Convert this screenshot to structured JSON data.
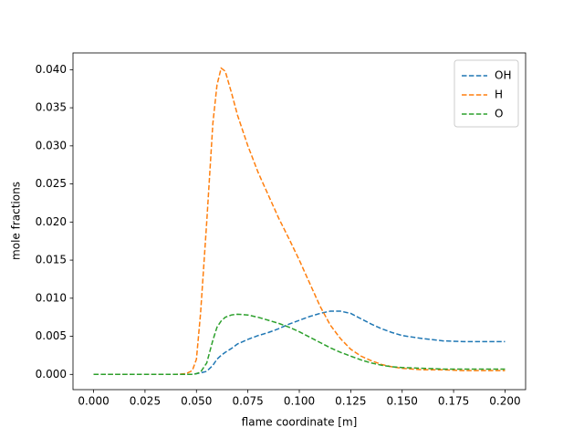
{
  "chart_data": {
    "type": "line",
    "xlabel": "flame coordinate [m]",
    "ylabel": "mole fractions",
    "x": [
      0,
      0.02,
      0.04,
      0.045,
      0.048,
      0.05,
      0.052,
      0.055,
      0.058,
      0.06,
      0.062,
      0.064,
      0.067,
      0.07,
      0.075,
      0.08,
      0.085,
      0.09,
      0.095,
      0.1,
      0.105,
      0.11,
      0.115,
      0.12,
      0.125,
      0.13,
      0.135,
      0.14,
      0.145,
      0.15,
      0.16,
      0.17,
      0.18,
      0.19,
      0.2
    ],
    "series": [
      {
        "name": "OH",
        "color": "#1f77b4",
        "values": [
          0,
          0,
          0,
          0,
          0,
          0.0001,
          0.0002,
          0.0004,
          0.0012,
          0.002,
          0.0025,
          0.0029,
          0.0034,
          0.004,
          0.0046,
          0.0051,
          0.0055,
          0.006,
          0.0066,
          0.0071,
          0.0076,
          0.008,
          0.0083,
          0.0083,
          0.008,
          0.0073,
          0.0066,
          0.006,
          0.0055,
          0.0051,
          0.0047,
          0.0044,
          0.0043,
          0.0043,
          0.0043
        ]
      },
      {
        "name": "H",
        "color": "#ff7f0e",
        "values": [
          0,
          0,
          0,
          0.0001,
          0.0005,
          0.002,
          0.008,
          0.02,
          0.033,
          0.038,
          0.0402,
          0.0398,
          0.037,
          0.034,
          0.03,
          0.0265,
          0.0235,
          0.0205,
          0.0178,
          0.015,
          0.012,
          0.009,
          0.0065,
          0.0047,
          0.0033,
          0.0024,
          0.0018,
          0.0013,
          0.001,
          0.0008,
          0.0006,
          0.0006,
          0.0005,
          0.0005,
          0.0005
        ]
      },
      {
        "name": "O",
        "color": "#2ca02c",
        "values": [
          0,
          0,
          0,
          0,
          0,
          0.0001,
          0.0003,
          0.0015,
          0.0045,
          0.0062,
          0.007,
          0.0075,
          0.0078,
          0.0079,
          0.0078,
          0.0075,
          0.0071,
          0.0067,
          0.0062,
          0.0056,
          0.0049,
          0.0042,
          0.0035,
          0.0029,
          0.0024,
          0.0019,
          0.0015,
          0.0012,
          0.001,
          0.0009,
          0.0008,
          0.0007,
          0.0007,
          0.0007,
          0.0007
        ]
      }
    ],
    "xlim": [
      -0.01,
      0.21
    ],
    "xticks": [
      {
        "value": 0,
        "label": "0.000"
      },
      {
        "value": 0.025,
        "label": "0.025"
      },
      {
        "value": 0.05,
        "label": "0.050"
      },
      {
        "value": 0.075,
        "label": "0.075"
      },
      {
        "value": 0.1,
        "label": "0.100"
      },
      {
        "value": 0.125,
        "label": "0.125"
      },
      {
        "value": 0.15,
        "label": "0.150"
      },
      {
        "value": 0.175,
        "label": "0.175"
      },
      {
        "value": 0.2,
        "label": "0.200"
      }
    ],
    "ylim": [
      -0.002,
      0.0422
    ],
    "yticks": [
      {
        "value": 0,
        "label": "0.000"
      },
      {
        "value": 0.005,
        "label": "0.005"
      },
      {
        "value": 0.01,
        "label": "0.010"
      },
      {
        "value": 0.015,
        "label": "0.015"
      },
      {
        "value": 0.02,
        "label": "0.020"
      },
      {
        "value": 0.025,
        "label": "0.025"
      },
      {
        "value": 0.03,
        "label": "0.030"
      },
      {
        "value": 0.035,
        "label": "0.035"
      },
      {
        "value": 0.04,
        "label": "0.040"
      }
    ],
    "legend": "upper right",
    "line_style": "dashed",
    "grid": false
  }
}
